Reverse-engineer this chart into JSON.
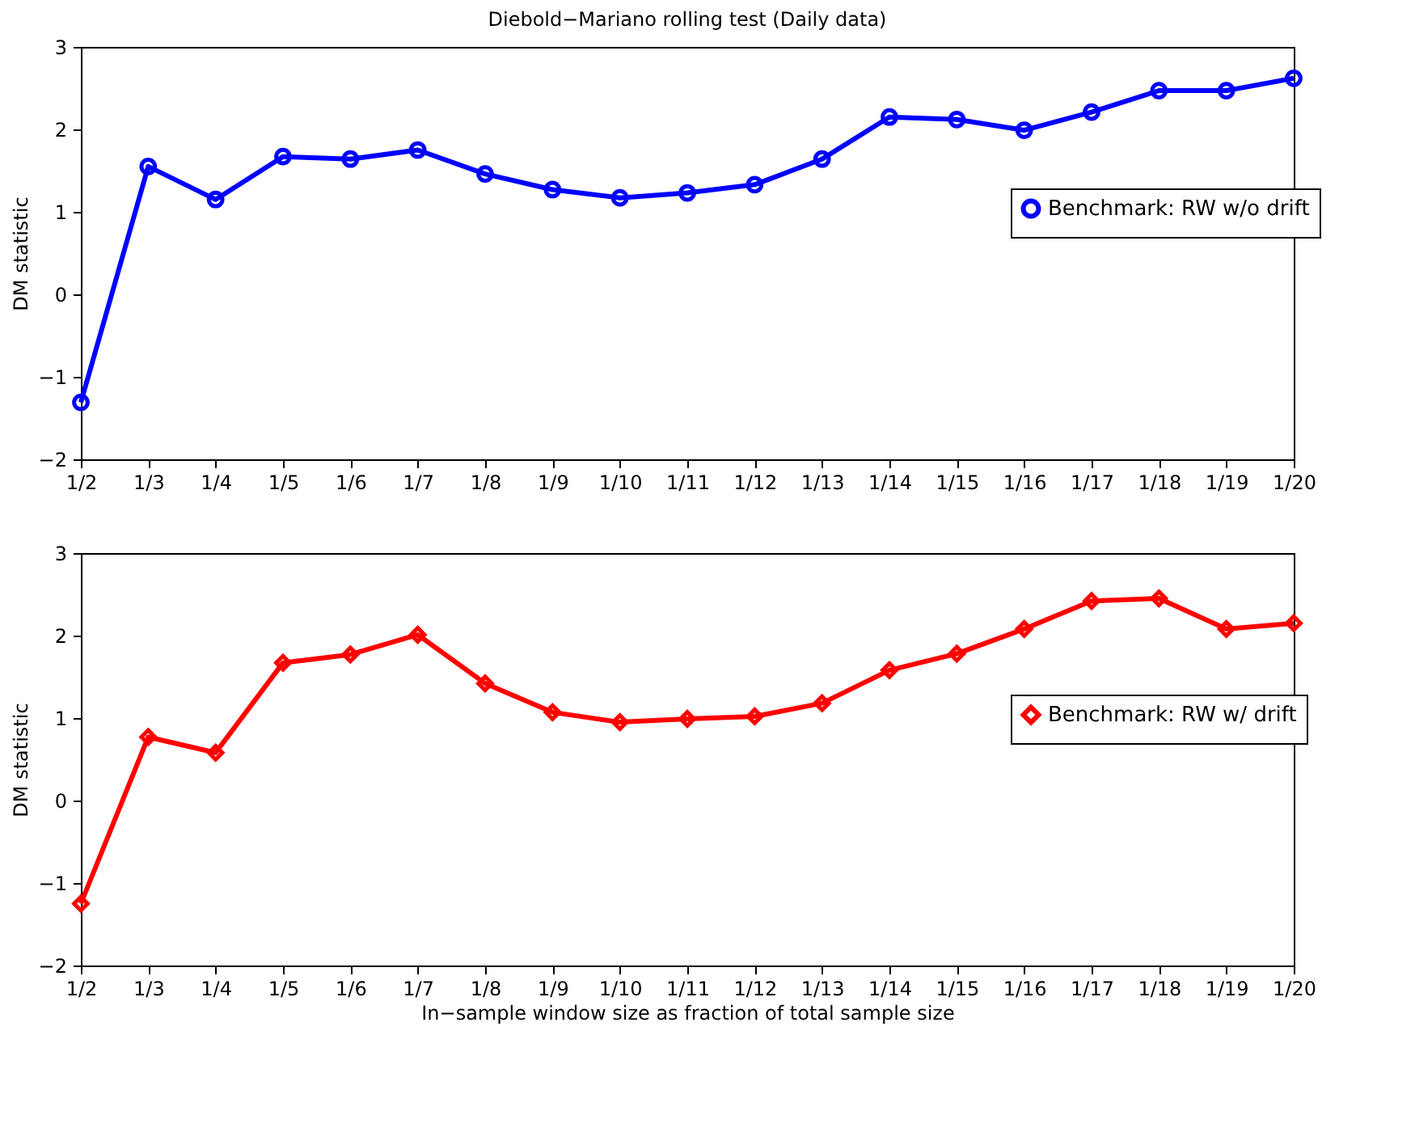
{
  "chart_data": [
    {
      "type": "line",
      "title": "Diebold−Mariano rolling test (Daily data)",
      "ylabel": "DM statistic",
      "categories": [
        "1/2",
        "1/3",
        "1/4",
        "1/5",
        "1/6",
        "1/7",
        "1/8",
        "1/9",
        "1/10",
        "1/11",
        "1/12",
        "1/13",
        "1/14",
        "1/15",
        "1/16",
        "1/17",
        "1/18",
        "1/19",
        "1/20"
      ],
      "series": [
        {
          "name": "Benchmark: RW w/o drift",
          "color": "#0000ff",
          "values": [
            -1.31,
            1.55,
            1.15,
            1.67,
            1.64,
            1.75,
            1.46,
            1.27,
            1.17,
            1.23,
            1.33,
            1.64,
            2.15,
            2.12,
            1.99,
            2.21,
            2.47,
            2.47,
            2.62
          ]
        }
      ],
      "ylim": [
        -2,
        3
      ],
      "yticks": [
        -2,
        -1,
        0,
        1,
        2,
        3
      ],
      "legend": "right",
      "marker": "circle"
    },
    {
      "type": "line",
      "xlabel": "In−sample window size as fraction of total sample size",
      "ylabel": "DM statistic",
      "categories": [
        "1/2",
        "1/3",
        "1/4",
        "1/5",
        "1/6",
        "1/7",
        "1/8",
        "1/9",
        "1/10",
        "1/11",
        "1/12",
        "1/13",
        "1/14",
        "1/15",
        "1/16",
        "1/17",
        "1/18",
        "1/19",
        "1/20"
      ],
      "series": [
        {
          "name": "Benchmark: RW w/ drift",
          "color": "#ff0000",
          "values": [
            -1.25,
            0.77,
            0.58,
            1.67,
            1.77,
            2.01,
            1.42,
            1.07,
            0.95,
            0.99,
            1.02,
            1.18,
            1.58,
            1.78,
            2.08,
            2.42,
            2.45,
            2.08,
            2.15
          ]
        }
      ],
      "ylim": [
        -2,
        3
      ],
      "yticks": [
        -2,
        -1,
        0,
        1,
        2,
        3
      ],
      "legend": "right",
      "marker": "diamond"
    }
  ]
}
